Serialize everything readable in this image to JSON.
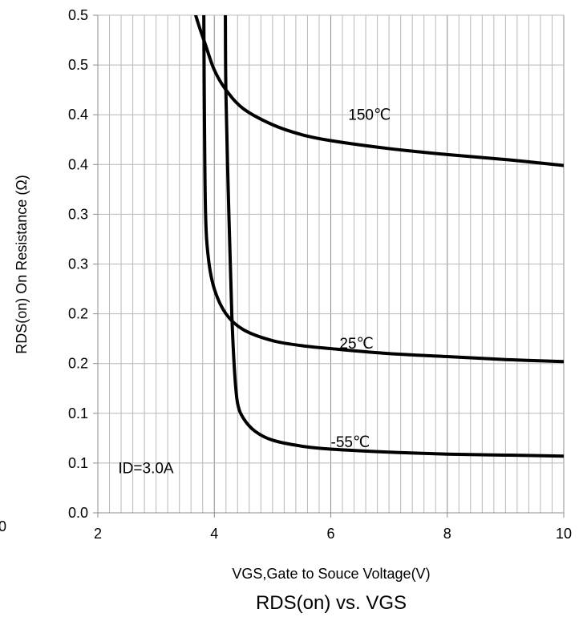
{
  "chart_data": {
    "type": "line",
    "title": "RDS(on) vs. VGS",
    "xlabel": "VGS,Gate to Souce Voltage(V)",
    "ylabel": "RDS(on) On Resistance (Ω)",
    "xlim": [
      2,
      10
    ],
    "ylim": [
      0,
      0.5
    ],
    "x_ticks": [
      "2",
      "4",
      "6",
      "8",
      "10"
    ],
    "x_tick_values": [
      2,
      4,
      6,
      8,
      10
    ],
    "y_ticks": [
      "0.0",
      "0.1",
      "0.1",
      "0.2",
      "0.2",
      "0.3",
      "0.3",
      "0.4",
      "0.4",
      "0.5",
      "0.5"
    ],
    "y_tick_values": [
      0,
      0.05,
      0.1,
      0.15,
      0.2,
      0.25,
      0.3,
      0.35,
      0.4,
      0.45,
      0.5
    ],
    "extra_label": "0",
    "grid": true,
    "annotations": [
      {
        "text": "150℃",
        "x": 6.3,
        "y": 0.395
      },
      {
        "text": "25℃",
        "x": 6.15,
        "y": 0.165
      },
      {
        "text": "-55℃",
        "x": 6.0,
        "y": 0.066
      },
      {
        "text": "ID=3.0A",
        "x": 2.35,
        "y": 0.04
      }
    ],
    "series": [
      {
        "name": "150℃",
        "x": [
          3.68,
          3.75,
          3.85,
          4.0,
          4.2,
          4.5,
          5.0,
          5.5,
          6.0,
          7.0,
          8.0,
          9.0,
          10.0
        ],
        "y": [
          0.5,
          0.487,
          0.47,
          0.445,
          0.425,
          0.406,
          0.39,
          0.38,
          0.374,
          0.366,
          0.36,
          0.355,
          0.349
        ]
      },
      {
        "name": "25℃",
        "x": [
          3.82,
          3.83,
          3.85,
          3.9,
          4.0,
          4.2,
          4.5,
          5.0,
          5.5,
          6.0,
          7.0,
          8.0,
          9.0,
          10.0
        ],
        "y": [
          0.5,
          0.4,
          0.3,
          0.255,
          0.225,
          0.2,
          0.184,
          0.173,
          0.168,
          0.165,
          0.16,
          0.157,
          0.154,
          0.152
        ]
      },
      {
        "name": "-55℃",
        "x": [
          4.19,
          4.2,
          4.25,
          4.3,
          4.35,
          4.4,
          4.5,
          4.7,
          5.0,
          5.5,
          6.0,
          7.0,
          8.0,
          9.0,
          10.0
        ],
        "y": [
          0.5,
          0.42,
          0.3,
          0.2,
          0.14,
          0.11,
          0.095,
          0.082,
          0.073,
          0.067,
          0.064,
          0.061,
          0.059,
          0.058,
          0.057
        ]
      }
    ]
  }
}
